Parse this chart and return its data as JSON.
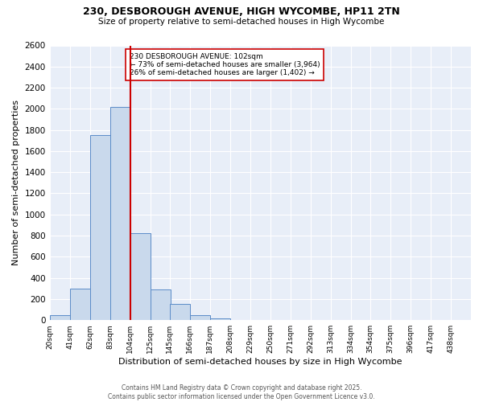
{
  "title_line1": "230, DESBOROUGH AVENUE, HIGH WYCOMBE, HP11 2TN",
  "title_line2": "Size of property relative to semi-detached houses in High Wycombe",
  "xlabel": "Distribution of semi-detached houses by size in High Wycombe",
  "ylabel": "Number of semi-detached properties",
  "bin_labels": [
    "20sqm",
    "41sqm",
    "62sqm",
    "83sqm",
    "104sqm",
    "125sqm",
    "145sqm",
    "166sqm",
    "187sqm",
    "208sqm",
    "229sqm",
    "250sqm",
    "271sqm",
    "292sqm",
    "313sqm",
    "334sqm",
    "354sqm",
    "375sqm",
    "396sqm",
    "417sqm",
    "438sqm"
  ],
  "bin_edges": [
    20,
    41,
    62,
    83,
    104,
    125,
    145,
    166,
    187,
    208,
    229,
    250,
    271,
    292,
    313,
    334,
    354,
    375,
    396,
    417,
    438
  ],
  "bar_heights": [
    50,
    300,
    1750,
    2020,
    820,
    290,
    155,
    50,
    20,
    0,
    0,
    0,
    0,
    0,
    0,
    0,
    0,
    0,
    0,
    0
  ],
  "bar_color": "#c9d9ec",
  "bar_edge_color": "#5b8cc8",
  "property_line_x": 104,
  "vline_color": "#cc0000",
  "annotation_text": "230 DESBOROUGH AVENUE: 102sqm\n← 73% of semi-detached houses are smaller (3,964)\n26% of semi-detached houses are larger (1,402) →",
  "annotation_box_color": "#ffffff",
  "annotation_box_edge": "#cc0000",
  "ylim": [
    0,
    2600
  ],
  "yticks": [
    0,
    200,
    400,
    600,
    800,
    1000,
    1200,
    1400,
    1600,
    1800,
    2000,
    2200,
    2400,
    2600
  ],
  "bg_color": "#e8eef8",
  "grid_color": "#ffffff",
  "fig_bg_color": "#ffffff",
  "footnote": "Contains HM Land Registry data © Crown copyright and database right 2025.\nContains public sector information licensed under the Open Government Licence v3.0."
}
